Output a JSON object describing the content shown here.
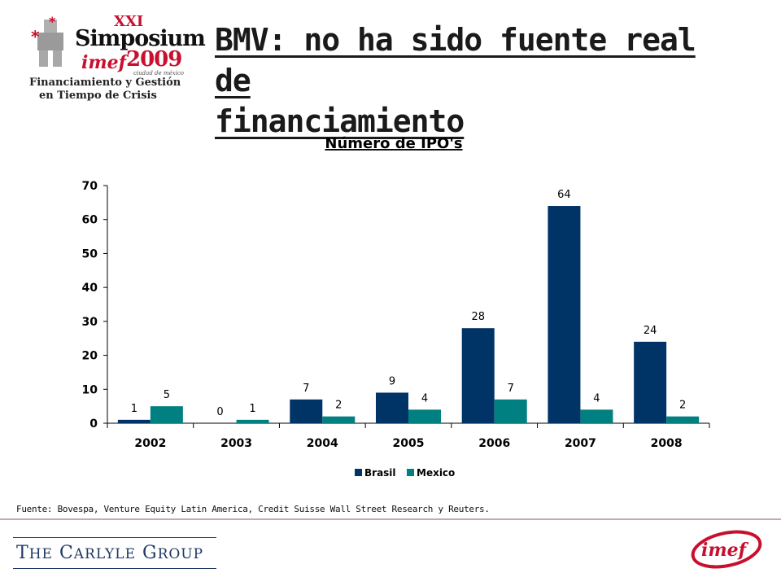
{
  "header": {
    "title_line1": "BMV: no ha sido fuente real de",
    "title_line2": "financiamiento"
  },
  "logo": {
    "edition": "XXI",
    "name": "Simposium",
    "org": "imef",
    "year": "2009",
    "city": "ciudad de méxico",
    "tagline1": "Financiamiento y Gestión",
    "tagline2": "en Tiempo de Crisis"
  },
  "footer": {
    "source": "Fuente: Bovespa, Venture Equity Latin America, Credit Suisse Wall Street Research y Reuters.",
    "company_first": "T",
    "company_he": "HE",
    "company_c": "C",
    "company_arlyle": "ARLYLE",
    "company_g": "G",
    "company_roup": "ROUP",
    "imef_logo_text": "imef"
  },
  "colors": {
    "brasil": "#003366",
    "mexico": "#008080",
    "accent_red": "#c8102e",
    "carlyle_blue": "#1f3864"
  },
  "chart_data": {
    "type": "bar",
    "title": "Número de IPO's",
    "categories": [
      "2002",
      "2003",
      "2004",
      "2005",
      "2006",
      "2007",
      "2008"
    ],
    "series": [
      {
        "name": "Brasil",
        "values": [
          1,
          0,
          7,
          9,
          28,
          64,
          24
        ],
        "color": "#003366"
      },
      {
        "name": "Mexico",
        "values": [
          5,
          1,
          2,
          4,
          7,
          4,
          2
        ],
        "color": "#008080"
      }
    ],
    "yticks": [
      0,
      10,
      20,
      30,
      40,
      50,
      60,
      70
    ],
    "ylim": [
      0,
      70
    ],
    "xlabel": "",
    "ylabel": "",
    "legend": "bottom",
    "grid": false
  }
}
